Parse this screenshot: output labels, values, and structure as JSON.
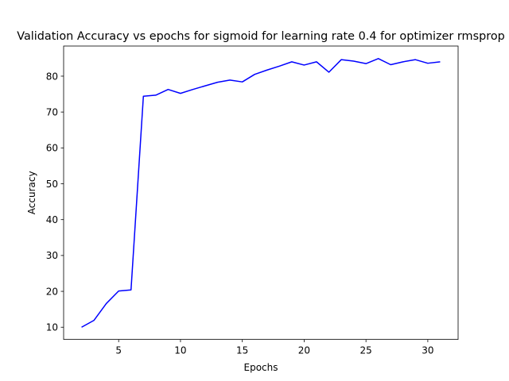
{
  "chart_data": {
    "type": "line",
    "title": "Validation Accuracy vs epochs for sigmoid for learning rate 0.4 for optimizer rmsprop",
    "xlabel": "Epochs",
    "ylabel": "Accuracy",
    "xlim": [
      0.55,
      32.45
    ],
    "ylim": [
      6.6,
      88.4
    ],
    "xticks": [
      5,
      10,
      15,
      20,
      25,
      30
    ],
    "yticks": [
      10,
      20,
      30,
      40,
      50,
      60,
      70,
      80
    ],
    "grid": false,
    "legend": "none",
    "series": [
      {
        "color": "#0000ff",
        "x": [
          2,
          3,
          4,
          5,
          6,
          7,
          8,
          9,
          10,
          11,
          12,
          13,
          14,
          15,
          16,
          17,
          18,
          19,
          20,
          21,
          22,
          23,
          24,
          25,
          26,
          27,
          28,
          29,
          30,
          31
        ],
        "y": [
          10.0,
          11.9,
          16.6,
          20.1,
          20.4,
          74.4,
          74.7,
          76.3,
          75.2,
          76.3,
          77.3,
          78.3,
          78.9,
          78.4,
          80.5,
          81.7,
          82.8,
          84.0,
          83.1,
          84.0,
          81.1,
          84.6,
          84.2,
          83.5,
          84.9,
          83.2,
          84.0,
          84.6,
          83.6,
          84.0
        ]
      }
    ]
  }
}
